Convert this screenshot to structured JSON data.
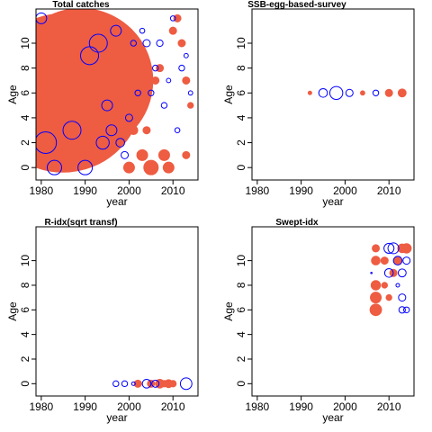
{
  "chart_data": [
    {
      "type": "scatter",
      "title": "Total catches",
      "xlabel": "year",
      "ylabel": "Age",
      "xlim": [
        1978.8,
        2015.7
      ],
      "ylim": [
        -1,
        12.75
      ],
      "xticks": [
        1980,
        1990,
        2000,
        2010
      ],
      "yticks": [
        0,
        2,
        4,
        6,
        8,
        10
      ],
      "series": [
        {
          "color": "#ee5c42",
          "filled": true,
          "x": [
            1985,
            1989,
            1982,
            1994,
            1997,
            1999,
            2001,
            2003,
            2005,
            2006,
            2008,
            2010,
            2012,
            2013,
            2014,
            2000,
            2004,
            2009,
            2011,
            2002,
            2007,
            2013,
            1996,
            1998
          ],
          "y": [
            6,
            7,
            2,
            8,
            11,
            8,
            3,
            1,
            0,
            7,
            1,
            11,
            10,
            7,
            5,
            0,
            3,
            0,
            12,
            9,
            8,
            1,
            5,
            4
          ],
          "sizes": [
            22,
            20,
            5,
            1.5,
            1,
            1,
            1.2,
            1.5,
            2,
            1,
            1.5,
            1,
            1,
            1,
            0.8,
            1.5,
            1,
            1.5,
            1,
            0.8,
            1,
            1,
            1.2,
            0.8
          ]
        },
        {
          "color": "#0000ff",
          "filled": false,
          "x": [
            1981,
            1987,
            1991,
            1993,
            1983,
            1990,
            1995,
            1997,
            1996,
            1998,
            2000,
            2002,
            2004,
            2006,
            2008,
            2010,
            2012,
            2014,
            1999,
            2003,
            2005,
            2007,
            2009,
            2011,
            2013,
            2001,
            1980,
            1994
          ],
          "y": [
            2,
            3,
            9,
            10,
            0,
            0,
            5,
            11,
            3,
            2,
            4,
            6,
            10,
            8,
            5,
            12,
            8,
            6,
            1,
            11,
            6,
            10,
            7,
            3,
            9,
            10,
            12,
            2
          ],
          "sizes": [
            3,
            2.5,
            2.5,
            2.5,
            2,
            2,
            1.5,
            1.5,
            1.5,
            1.2,
            1,
            0.8,
            1,
            0.8,
            0.8,
            0.7,
            0.8,
            0.6,
            1,
            0.7,
            0.8,
            0.9,
            0.6,
            0.7,
            0.6,
            0.8,
            1.5,
            1.8
          ]
        }
      ]
    },
    {
      "type": "scatter",
      "title": "SSB-egg-based-survey",
      "xlabel": "year",
      "ylabel": "Age",
      "xlim": [
        1978.8,
        2015.7
      ],
      "ylim": [
        -1,
        12.75
      ],
      "xticks": [
        1980,
        1990,
        2000,
        2010
      ],
      "yticks": [
        0,
        2,
        4,
        6,
        8,
        10
      ],
      "series": [
        {
          "color": "#ee5c42",
          "filled": true,
          "x": [
            1992,
            2004,
            2010,
            2013
          ],
          "y": [
            6,
            6,
            6,
            6
          ],
          "sizes": [
            0.5,
            0.6,
            1,
            1.1
          ]
        },
        {
          "color": "#0000ff",
          "filled": false,
          "x": [
            1995,
            1998,
            2001,
            2007
          ],
          "y": [
            6,
            6,
            6,
            6
          ],
          "sizes": [
            1.2,
            1.8,
            1,
            0.8
          ]
        }
      ]
    },
    {
      "type": "scatter",
      "title": "R-idx(sqrt transf)",
      "xlabel": "year",
      "ylabel": "Age",
      "xlim": [
        1978.8,
        2015.7
      ],
      "ylim": [
        -1,
        12.75
      ],
      "xticks": [
        1980,
        1990,
        2000,
        2010
      ],
      "yticks": [
        0,
        2,
        4,
        6,
        8,
        10
      ],
      "series": [
        {
          "color": "#ee5c42",
          "filled": true,
          "x": [
            2002,
            2005,
            2007,
            2008,
            2009,
            2010
          ],
          "y": [
            0,
            0,
            0,
            0,
            0,
            0
          ],
          "sizes": [
            1,
            1,
            1.2,
            0.9,
            1.1,
            0.9
          ]
        },
        {
          "color": "#0000ff",
          "filled": false,
          "x": [
            1997,
            1999,
            2001,
            2004,
            2006,
            2013
          ],
          "y": [
            0,
            0,
            0,
            0,
            0,
            0
          ],
          "sizes": [
            0.8,
            0.8,
            0.5,
            1.2,
            1,
            1.6
          ]
        }
      ]
    },
    {
      "type": "scatter",
      "title": "Swept-idx",
      "xlabel": "year",
      "ylabel": "Age",
      "xlim": [
        1978.8,
        2015.7
      ],
      "ylim": [
        -1,
        12.75
      ],
      "xticks": [
        1980,
        1990,
        2000,
        2010
      ],
      "yticks": [
        0,
        2,
        4,
        6,
        8,
        10
      ],
      "series": [
        {
          "color": "#ee5c42",
          "filled": true,
          "x": [
            2007,
            2007,
            2007,
            2007,
            2007,
            2009,
            2009,
            2010,
            2011,
            2012,
            2013,
            2014
          ],
          "y": [
            6,
            7,
            8,
            10,
            11,
            10,
            8,
            7,
            9,
            10,
            11,
            11
          ],
          "sizes": [
            1.6,
            1.5,
            1.3,
            1.2,
            1,
            1,
            0.8,
            0.8,
            1,
            1,
            1.2,
            1.3
          ]
        },
        {
          "color": "#0000ff",
          "filled": false,
          "x": [
            2010,
            2011,
            2012,
            2013,
            2014,
            2010,
            2012,
            2013,
            2013,
            2014,
            2006
          ],
          "y": [
            11,
            11,
            10,
            9,
            10,
            9,
            8,
            7,
            6,
            6,
            9
          ],
          "sizes": [
            1.4,
            1.5,
            1.2,
            1.1,
            1,
            1.2,
            0.5,
            1,
            0.9,
            0.8,
            0.2
          ]
        }
      ]
    }
  ]
}
